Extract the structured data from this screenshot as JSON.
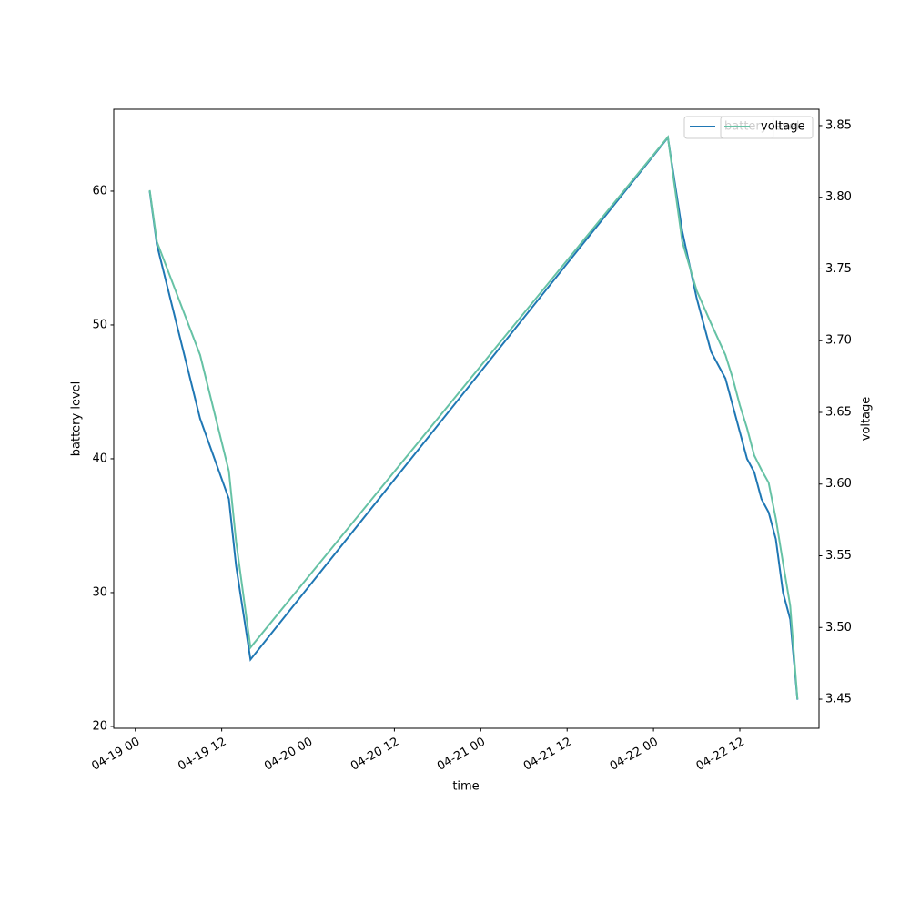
{
  "chart_data": {
    "type": "line",
    "xlabel": "time",
    "ylabel": "battery level",
    "y2label": "voltage",
    "x": [
      "04-19 02",
      "04-19 03",
      "04-19 09",
      "04-19 13",
      "04-19 14",
      "04-19 16",
      "04-22 02",
      "04-22 04",
      "04-22 06",
      "04-22 08",
      "04-22 10",
      "04-22 11",
      "04-22 12",
      "04-22 13",
      "04-22 14",
      "04-22 15",
      "04-22 16",
      "04-22 17",
      "04-22 18",
      "04-22 19",
      "04-22 20"
    ],
    "series": [
      {
        "name": "battery level",
        "color": "#1f77b4",
        "values": [
          60,
          56,
          43,
          37,
          32,
          25,
          64,
          57,
          52,
          48,
          46,
          44,
          42,
          40,
          39,
          37,
          36,
          34,
          30,
          28,
          22
        ]
      },
      {
        "name": "voltage",
        "color": "#66c2a5",
        "axis": "y2",
        "values": [
          3.805,
          3.769,
          3.69,
          3.609,
          3.56,
          3.486,
          3.842,
          3.769,
          3.735,
          3.712,
          3.69,
          3.674,
          3.655,
          3.639,
          3.62,
          3.61,
          3.601,
          3.576,
          3.545,
          3.515,
          3.45
        ]
      }
    ],
    "xlim": [
      "04-18 21",
      "04-22 23"
    ],
    "xticks": [
      "04-19 00",
      "04-19 12",
      "04-20 00",
      "04-20 12",
      "04-21 00",
      "04-21 12",
      "04-22 00",
      "04-22 12"
    ],
    "ylim": [
      19.86,
      66.12
    ],
    "yticks": [
      20,
      30,
      40,
      50,
      60
    ],
    "y2lim": [
      3.4297,
      3.8614
    ],
    "y2ticks": [
      3.45,
      {
        "value": 3.5,
        "label": "3.50"
      },
      3.55,
      {
        "value": 3.6,
        "label": "3.60"
      },
      3.65,
      {
        "value": 3.7,
        "label": "3.70"
      },
      3.75,
      {
        "value": 3.8,
        "label": "3.80"
      },
      3.85
    ],
    "legend": "upper right",
    "grid": false
  }
}
